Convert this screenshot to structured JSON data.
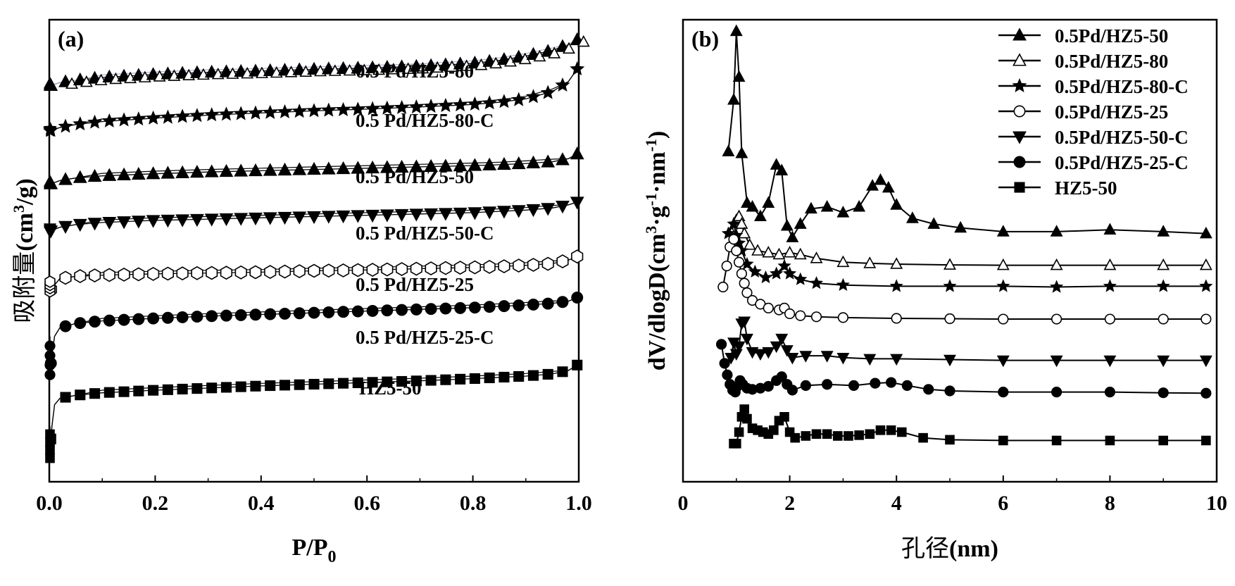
{
  "figure": {
    "colors": {
      "ink": "#000000",
      "background": "#ffffff",
      "guide_line": "#b8a8d8"
    }
  },
  "chart_data": [
    {
      "type": "line",
      "panel": "(a)",
      "xlabel": "P/P",
      "xlabel_sub": "0",
      "ylabel_cn": "吸附量",
      "ylabel_unit": "(cm",
      "ylabel_sup": "3",
      "ylabel_tail": "/g)",
      "xlim": [
        0.0,
        1.0
      ],
      "xticks": [
        "0.0",
        "0.2",
        "0.4",
        "0.6",
        "0.8",
        "1.0"
      ],
      "yticks_shown": false,
      "note": "isotherms vertically offset; y values in relative offset units",
      "series": [
        {
          "name": "0.5 Pd/HZ5-80",
          "marker": "triangle-up",
          "start_y": 8.85,
          "plateau_y": 9.3,
          "end_y": 9.95,
          "x": [
            0.0,
            0.02,
            0.05,
            0.1,
            0.2,
            0.3,
            0.4,
            0.5,
            0.6,
            0.7,
            0.8,
            0.85,
            0.9,
            0.95,
            0.98,
            1.0
          ],
          "y": [
            8.85,
            8.93,
            8.98,
            9.05,
            9.12,
            9.17,
            9.2,
            9.24,
            9.27,
            9.31,
            9.38,
            9.45,
            9.55,
            9.68,
            9.82,
            9.95
          ]
        },
        {
          "name": "0.5 Pd/HZ5-80-C",
          "marker": "star",
          "start_y": 7.8,
          "x": [
            0.0,
            0.02,
            0.05,
            0.1,
            0.2,
            0.3,
            0.4,
            0.5,
            0.6,
            0.7,
            0.8,
            0.85,
            0.9,
            0.95,
            0.98,
            1.0
          ],
          "y": [
            7.8,
            7.88,
            7.95,
            8.02,
            8.1,
            8.17,
            8.22,
            8.27,
            8.31,
            8.36,
            8.42,
            8.47,
            8.55,
            8.72,
            8.95,
            9.3
          ]
        },
        {
          "name": "0.5 Pd/HZ5-50",
          "marker": "triangle-up",
          "start_y": 6.55,
          "x": [
            0.0,
            0.02,
            0.05,
            0.1,
            0.2,
            0.3,
            0.4,
            0.5,
            0.6,
            0.7,
            0.8,
            0.85,
            0.9,
            0.95,
            0.98,
            1.0
          ],
          "y": [
            6.55,
            6.64,
            6.7,
            6.75,
            6.8,
            6.84,
            6.87,
            6.9,
            6.93,
            6.96,
            6.99,
            7.01,
            7.04,
            7.08,
            7.15,
            7.28
          ]
        },
        {
          "name": "0.5 Pd/HZ5-50-C",
          "marker": "triangle-down",
          "start_y": 5.45,
          "x": [
            0.0,
            0.02,
            0.05,
            0.1,
            0.2,
            0.3,
            0.4,
            0.5,
            0.6,
            0.7,
            0.8,
            0.85,
            0.9,
            0.95,
            0.98,
            1.0
          ],
          "y": [
            5.45,
            5.55,
            5.61,
            5.66,
            5.71,
            5.74,
            5.77,
            5.8,
            5.83,
            5.86,
            5.89,
            5.92,
            5.95,
            6.0,
            6.07,
            6.15
          ]
        },
        {
          "name": "0.5 Pd/HZ5-25",
          "marker": "hexagon-open",
          "start_y": 4.05,
          "x": [
            0.0,
            0.02,
            0.05,
            0.1,
            0.2,
            0.3,
            0.4,
            0.5,
            0.6,
            0.7,
            0.8,
            0.85,
            0.9,
            0.95,
            0.98,
            1.0
          ],
          "y": [
            4.05,
            4.35,
            4.4,
            4.43,
            4.46,
            4.48,
            4.5,
            4.53,
            4.55,
            4.58,
            4.61,
            4.63,
            4.66,
            4.7,
            4.78,
            4.88
          ]
        },
        {
          "name": "0.5 Pd/HZ5-25-C",
          "marker": "circle",
          "start_y": 2.1,
          "x": [
            0.0,
            0.01,
            0.02,
            0.05,
            0.1,
            0.2,
            0.3,
            0.4,
            0.5,
            0.6,
            0.7,
            0.8,
            0.85,
            0.9,
            0.95,
            0.98,
            1.0
          ],
          "y": [
            2.1,
            3.0,
            3.2,
            3.3,
            3.36,
            3.42,
            3.47,
            3.51,
            3.55,
            3.59,
            3.63,
            3.67,
            3.7,
            3.73,
            3.77,
            3.82,
            3.92
          ]
        },
        {
          "name": "HZ5-50",
          "marker": "square",
          "start_y": 0.15,
          "x": [
            0.0,
            0.005,
            0.01,
            0.02,
            0.05,
            0.1,
            0.2,
            0.3,
            0.4,
            0.5,
            0.6,
            0.7,
            0.8,
            0.85,
            0.9,
            0.95,
            0.98,
            1.0
          ],
          "y": [
            0.15,
            0.9,
            1.4,
            1.55,
            1.62,
            1.68,
            1.74,
            1.79,
            1.84,
            1.88,
            1.92,
            1.96,
            2.01,
            2.04,
            2.07,
            2.12,
            2.2,
            2.35
          ]
        }
      ]
    },
    {
      "type": "line",
      "panel": "(b)",
      "xlabel_cn": "孔径",
      "xlabel_unit": "(nm)",
      "ylabel_parts": [
        "dV/dlogD(cm",
        "3",
        "·g",
        "-1",
        "·nm",
        "-1",
        ")"
      ],
      "xlim": [
        0,
        10
      ],
      "xticks": [
        "0",
        "2",
        "4",
        "6",
        "8",
        "10"
      ],
      "yticks_shown": false,
      "legend_position": "top-right",
      "series": [
        {
          "name": "0.5Pd/HZ5-50",
          "marker": "triangle-up",
          "x": [
            0.85,
            0.95,
            1.0,
            1.05,
            1.1,
            1.2,
            1.3,
            1.45,
            1.6,
            1.75,
            1.85,
            1.95,
            2.05,
            2.2,
            2.4,
            2.7,
            3.0,
            3.3,
            3.55,
            3.7,
            3.85,
            4.0,
            4.3,
            4.7,
            5.2,
            6.0,
            7.0,
            8.0,
            9.0,
            9.8
          ],
          "y": [
            5.45,
            6.8,
            8.6,
            7.4,
            5.4,
            4.1,
            4.0,
            3.75,
            4.1,
            5.1,
            4.95,
            3.5,
            3.2,
            3.55,
            3.95,
            4.0,
            3.85,
            4.0,
            4.55,
            4.7,
            4.5,
            4.05,
            3.7,
            3.55,
            3.45,
            3.35,
            3.35,
            3.4,
            3.35,
            3.3
          ]
        },
        {
          "name": "0.5Pd/HZ5-80",
          "marker": "triangle-open",
          "x": [
            0.9,
            1.0,
            1.05,
            1.1,
            1.15,
            1.25,
            1.4,
            1.6,
            1.8,
            2.0,
            2.2,
            2.5,
            3.0,
            3.5,
            4.0,
            5.0,
            6.0,
            7.0,
            8.0,
            9.0,
            9.8
          ],
          "y": [
            3.35,
            3.65,
            3.75,
            3.55,
            3.3,
            3.0,
            2.85,
            2.8,
            2.75,
            2.8,
            2.75,
            2.65,
            2.55,
            2.52,
            2.5,
            2.48,
            2.47,
            2.47,
            2.47,
            2.47,
            2.47
          ]
        },
        {
          "name": "0.5Pd/HZ5-80-C",
          "marker": "star",
          "x": [
            0.85,
            0.95,
            1.0,
            1.05,
            1.1,
            1.2,
            1.35,
            1.55,
            1.75,
            1.9,
            2.0,
            2.2,
            2.5,
            3.0,
            4.0,
            5.0,
            6.0,
            7.0,
            8.0,
            9.0,
            9.8
          ],
          "y": [
            3.3,
            3.55,
            3.25,
            3.05,
            2.85,
            2.5,
            2.3,
            2.15,
            2.25,
            2.45,
            2.25,
            2.1,
            2.0,
            1.95,
            1.92,
            1.92,
            1.92,
            1.9,
            1.92,
            1.92,
            1.92
          ]
        },
        {
          "name": "0.5Pd/HZ5-25",
          "marker": "circle-open",
          "x": [
            0.75,
            0.82,
            0.88,
            0.95,
            1.0,
            1.05,
            1.1,
            1.15,
            1.2,
            1.3,
            1.45,
            1.6,
            1.8,
            1.9,
            2.0,
            2.2,
            2.5,
            3.0,
            4.0,
            5.0,
            6.0,
            7.0,
            8.0,
            9.0,
            9.8
          ],
          "y": [
            1.9,
            2.45,
            2.95,
            3.15,
            2.85,
            2.55,
            2.25,
            2.0,
            1.75,
            1.55,
            1.45,
            1.35,
            1.3,
            1.35,
            1.2,
            1.15,
            1.12,
            1.1,
            1.08,
            1.07,
            1.06,
            1.06,
            1.06,
            1.06,
            1.06
          ]
        },
        {
          "name": "0.5Pd/HZ5-50-C",
          "marker": "triangle-down",
          "x": [
            0.9,
            0.95,
            1.0,
            1.05,
            1.1,
            1.15,
            1.2,
            1.3,
            1.45,
            1.6,
            1.75,
            1.85,
            1.95,
            2.05,
            2.3,
            2.7,
            3.0,
            3.5,
            4.0,
            5.0,
            6.0,
            7.0,
            8.0,
            9.0,
            9.8
          ],
          "y": [
            0.05,
            0.45,
            0.15,
            0.35,
            0.95,
            1.0,
            0.55,
            0.2,
            0.15,
            0.2,
            0.35,
            0.55,
            0.25,
            0.05,
            0.1,
            0.1,
            0.05,
            0.02,
            0.02,
            0.0,
            -0.02,
            -0.02,
            -0.02,
            -0.02,
            -0.02
          ]
        },
        {
          "name": "0.5Pd/HZ5-25-C",
          "marker": "circle",
          "x": [
            0.72,
            0.78,
            0.83,
            0.88,
            0.93,
            0.98,
            1.02,
            1.07,
            1.12,
            1.2,
            1.3,
            1.45,
            1.6,
            1.75,
            1.85,
            1.95,
            2.05,
            2.3,
            2.7,
            3.2,
            3.6,
            3.9,
            4.2,
            4.6,
            5.0,
            6.0,
            7.0,
            8.0,
            9.0,
            9.8
          ],
          "y": [
            0.4,
            -0.1,
            -0.4,
            -0.65,
            -0.8,
            -0.85,
            -0.7,
            -0.55,
            -0.65,
            -0.75,
            -0.78,
            -0.75,
            -0.7,
            -0.55,
            -0.45,
            -0.65,
            -0.8,
            -0.68,
            -0.65,
            -0.68,
            -0.62,
            -0.6,
            -0.68,
            -0.78,
            -0.82,
            -0.85,
            -0.85,
            -0.85,
            -0.87,
            -0.88
          ]
        },
        {
          "name": "HZ5-50",
          "marker": "square",
          "x": [
            0.95,
            1.0,
            1.05,
            1.1,
            1.15,
            1.2,
            1.3,
            1.4,
            1.5,
            1.6,
            1.7,
            1.8,
            1.9,
            2.0,
            2.1,
            2.3,
            2.5,
            2.7,
            2.9,
            3.1,
            3.3,
            3.5,
            3.7,
            3.9,
            4.1,
            4.5,
            5.0,
            6.0,
            7.0,
            8.0,
            9.0,
            9.8
          ],
          "y": [
            -2.2,
            -2.2,
            -1.9,
            -1.5,
            -1.3,
            -1.55,
            -1.8,
            -1.85,
            -1.9,
            -1.95,
            -1.85,
            -1.6,
            -1.5,
            -1.9,
            -2.05,
            -2.0,
            -1.95,
            -1.95,
            -2.0,
            -2.0,
            -1.98,
            -1.95,
            -1.85,
            -1.85,
            -1.9,
            -2.05,
            -2.1,
            -2.12,
            -2.12,
            -2.12,
            -2.12,
            -2.12
          ]
        }
      ]
    }
  ]
}
